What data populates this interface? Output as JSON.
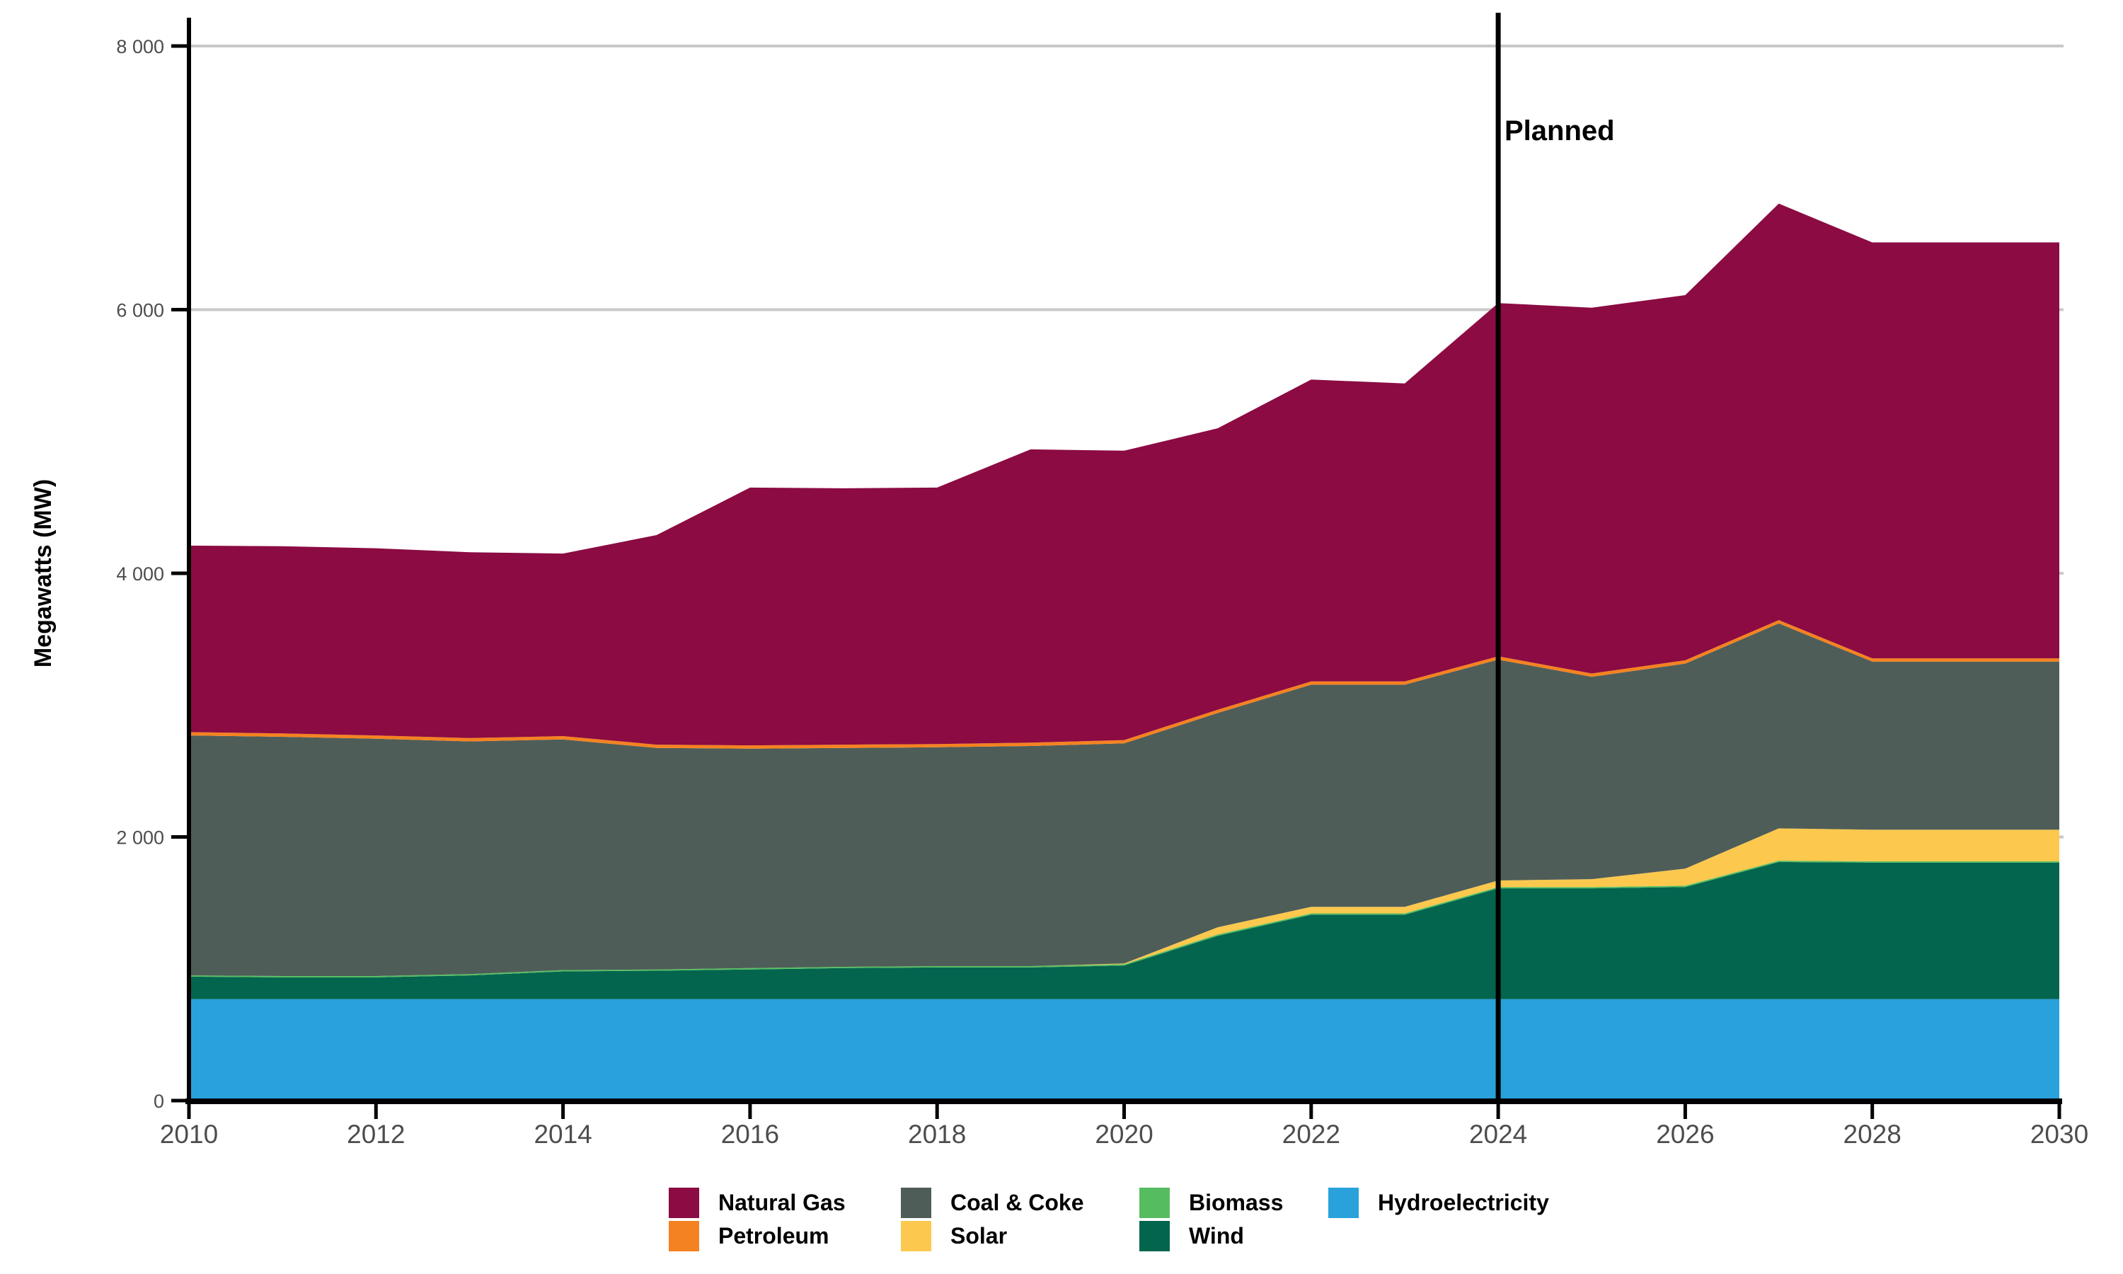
{
  "chart_data": {
    "type": "area",
    "stacked": true,
    "title": "",
    "xlabel": "",
    "ylabel": "Megawatts (MW)",
    "x": [
      2010,
      2011,
      2012,
      2013,
      2014,
      2015,
      2016,
      2017,
      2018,
      2019,
      2020,
      2021,
      2022,
      2023,
      2024,
      2025,
      2026,
      2027,
      2028,
      2029,
      2030
    ],
    "series": [
      {
        "id": "hydro",
        "name": "Hydroelectricity",
        "color": "#29A2DB",
        "values": [
          770,
          770,
          770,
          770,
          770,
          770,
          770,
          770,
          770,
          770,
          770,
          770,
          770,
          770,
          770,
          770,
          770,
          770,
          770,
          770,
          770
        ]
      },
      {
        "id": "wind",
        "name": "Wind",
        "color": "#03654E",
        "values": [
          170,
          165,
          165,
          180,
          210,
          215,
          225,
          235,
          240,
          240,
          255,
          480,
          640,
          640,
          840,
          840,
          850,
          1040,
          1035,
          1035,
          1035
        ]
      },
      {
        "id": "biomass",
        "name": "Biomass",
        "color": "#55BD5F",
        "values": [
          10,
          10,
          10,
          10,
          10,
          10,
          10,
          10,
          10,
          10,
          10,
          10,
          10,
          10,
          10,
          10,
          10,
          10,
          10,
          10,
          10
        ]
      },
      {
        "id": "solar",
        "name": "Solar",
        "color": "#FCC84E",
        "values": [
          0,
          0,
          0,
          0,
          0,
          0,
          0,
          0,
          0,
          0,
          5,
          55,
          50,
          50,
          50,
          60,
          130,
          245,
          240,
          240,
          240
        ]
      },
      {
        "id": "coal",
        "name": "Coal & Coke",
        "color": "#4F5D58",
        "values": [
          1820,
          1815,
          1800,
          1765,
          1750,
          1680,
          1665,
          1660,
          1660,
          1670,
          1670,
          1625,
          1685,
          1685,
          1675,
          1535,
          1555,
          1555,
          1275,
          1275,
          1275
        ]
      },
      {
        "id": "petroleum",
        "name": "Petroleum",
        "color": "#F58220",
        "values": [
          25,
          25,
          25,
          25,
          25,
          25,
          25,
          25,
          25,
          25,
          25,
          25,
          25,
          25,
          25,
          25,
          25,
          25,
          25,
          25,
          25
        ]
      },
      {
        "id": "natural_gas",
        "name": "Natural Gas",
        "color": "#8B0B42",
        "values": [
          1415,
          1420,
          1420,
          1410,
          1385,
          1590,
          1955,
          1945,
          1945,
          2225,
          2195,
          2135,
          2290,
          2260,
          2680,
          2775,
          2770,
          3160,
          3155,
          3155,
          3155
        ]
      }
    ],
    "xlim": [
      2010,
      2030
    ],
    "ylim": [
      0,
      8000
    ],
    "xticks": [
      2010,
      2012,
      2014,
      2016,
      2018,
      2020,
      2022,
      2024,
      2026,
      2028,
      2030
    ],
    "yticks": {
      "values": [
        0,
        2000,
        4000,
        6000,
        8000
      ],
      "labels": [
        "0",
        "2 000",
        "4 000",
        "6 000",
        "8 000"
      ]
    },
    "grid": true,
    "gridline_color": "#C9C9C9",
    "tick_label_color": "#4D4D4D",
    "annotation": {
      "label": "Planned",
      "x": 2024
    },
    "legend_position": "bottom",
    "legend_columns": [
      [
        "natural_gas",
        "petroleum"
      ],
      [
        "coal",
        "solar"
      ],
      [
        "biomass",
        "wind"
      ],
      [
        "hydro"
      ]
    ]
  }
}
